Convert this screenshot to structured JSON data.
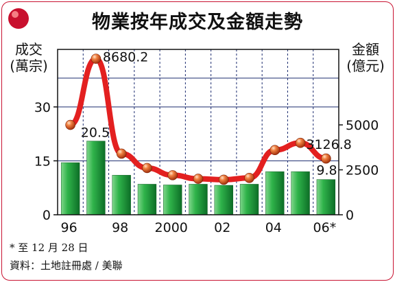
{
  "title": "物業按年成交及金額走勢",
  "left_axis_label": [
    "成交",
    "(萬宗)"
  ],
  "right_axis_label": [
    "金額",
    "(億元)"
  ],
  "footnote": "* 至 12 月 28 日",
  "source": "資料：土地註冊處 / 美聯",
  "colors": {
    "frame": "#c8102e",
    "bar": "#1e9a3a",
    "line": "#e32020",
    "dot": "#e2571b",
    "plot_bg": "#ffffff",
    "grid": "#1a2a6e"
  },
  "chart_data": {
    "type": "bar+line",
    "categories": [
      "1996",
      "1997",
      "1998",
      "1999",
      "2000",
      "2001",
      "2002",
      "2003",
      "2004",
      "2005",
      "2006*"
    ],
    "x_tick_labels": [
      "96",
      "",
      "98",
      "",
      "2000",
      "",
      "02",
      "",
      "04",
      "",
      "06*"
    ],
    "series": [
      {
        "type": "bar",
        "axis": "left",
        "values": [
          14.5,
          20.5,
          11.0,
          8.5,
          8.3,
          8.5,
          8.2,
          8.5,
          12.0,
          12.0,
          9.8
        ]
      },
      {
        "type": "line",
        "axis": "right",
        "values": [
          5000,
          8680.2,
          3400,
          2600,
          2200,
          2000,
          1950,
          2050,
          3600,
          4000,
          3126.8
        ]
      }
    ],
    "left_axis": {
      "ylim": [
        0,
        46
      ],
      "ticks": [
        0,
        15,
        30
      ]
    },
    "right_axis": {
      "ylim": [
        0,
        9200
      ],
      "ticks": [
        0,
        2500,
        5000
      ]
    },
    "data_labels": [
      {
        "series": 1,
        "index": 1,
        "text": "8680.2"
      },
      {
        "series": 0,
        "index": 1,
        "text": "20.5"
      },
      {
        "series": 1,
        "index": 10,
        "text": "3126.8"
      },
      {
        "series": 0,
        "index": 10,
        "text": "9.8"
      }
    ],
    "grid": true
  }
}
